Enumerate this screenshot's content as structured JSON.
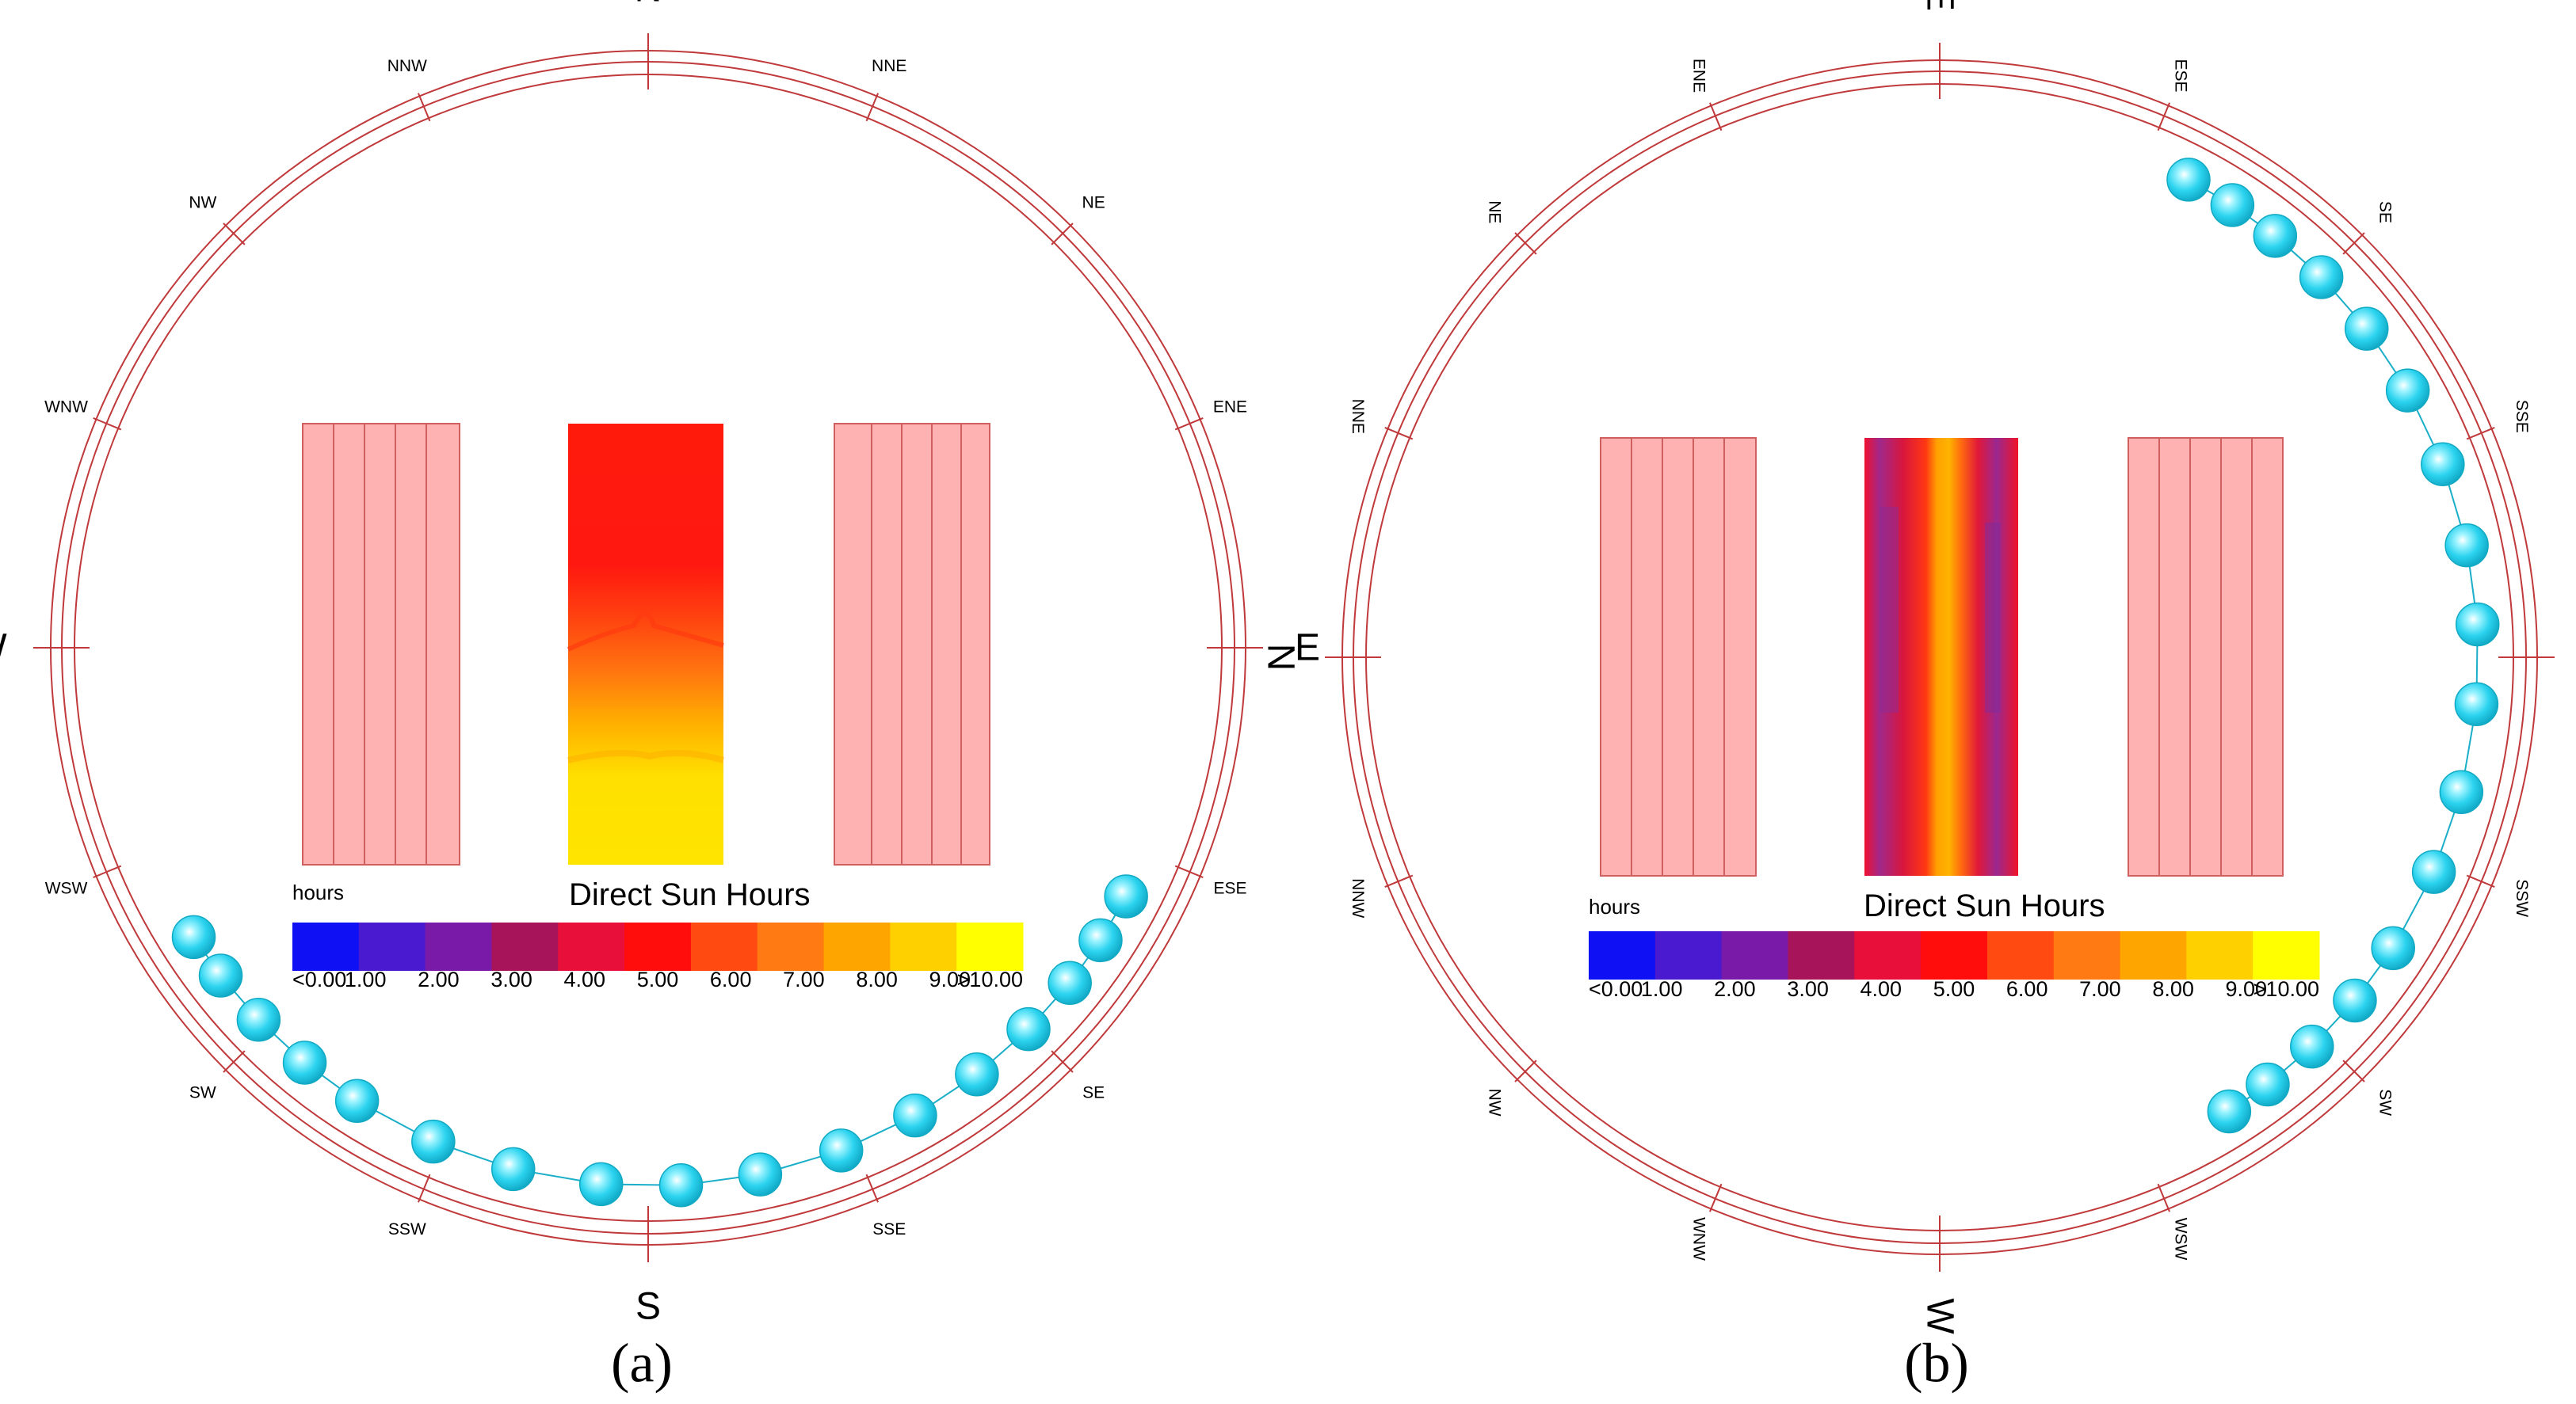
{
  "directions": [
    "N",
    "NNE",
    "NE",
    "ENE",
    "E",
    "ESE",
    "SE",
    "SSE",
    "S",
    "SSW",
    "SW",
    "WSW",
    "W",
    "WNW",
    "NW",
    "NNW"
  ],
  "legend": {
    "title": "Direct Sun Hours",
    "unit": "hours",
    "ticks": [
      "<0.00",
      "1.00",
      "2.00",
      "3.00",
      "4.00",
      "5.00",
      "6.00",
      "7.00",
      "8.00",
      "9.00",
      ">10.00"
    ],
    "colors": [
      "#1010f5",
      "#4a1ad0",
      "#7a1aa8",
      "#a8145a",
      "#e8103a",
      "#ff0c0c",
      "#ff4a12",
      "#ff7a12",
      "#ffa500",
      "#ffd000",
      "#ffff00"
    ]
  },
  "colors": {
    "compass_line": "#c0393b",
    "building": "#ffb2b2",
    "building_line": "#d06060",
    "sun": "#26d9f2"
  },
  "panels": [
    {
      "id": "a",
      "caption": "(a)",
      "sun_path_azimuths_deg": [
        237.5,
        232.5,
        226.3,
        219.6,
        212.7,
        203.5,
        194.5,
        185.0,
        176.5,
        168.0,
        159.0,
        150.3,
        142.4,
        135.1,
        128.5,
        122.9,
        117.5
      ]
    },
    {
      "id": "b",
      "caption": "(b)",
      "sun_path_azimuths_deg": [
        237.5,
        232.5,
        226.3,
        219.6,
        212.7,
        203.5,
        194.5,
        185.0,
        176.5,
        168.0,
        159.0,
        150.3,
        142.4,
        135.1,
        128.5,
        122.9,
        117.5
      ]
    }
  ]
}
